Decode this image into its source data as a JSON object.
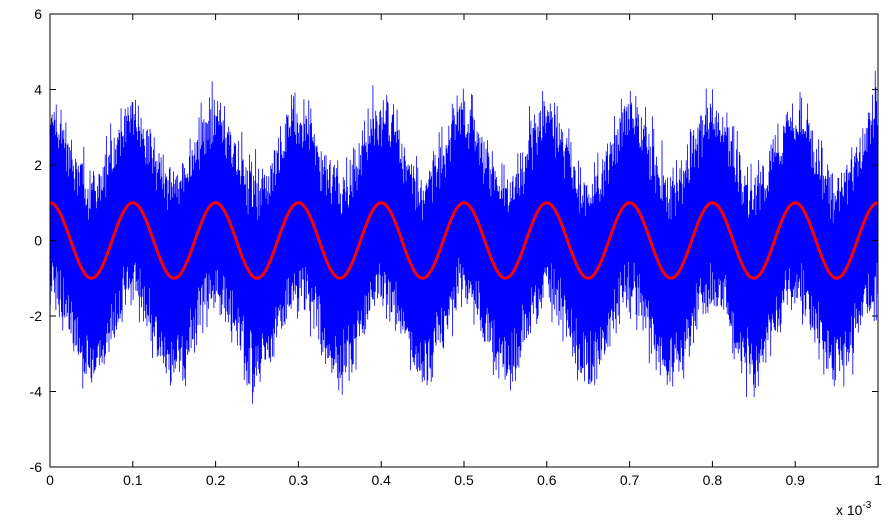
{
  "chart_data": {
    "type": "line",
    "title": "",
    "xlabel": "",
    "ylabel": "",
    "x_multiplier_label": "x 10",
    "x_multiplier_exponent": "-3",
    "xlim": [
      0,
      1
    ],
    "ylim": [
      -6,
      6
    ],
    "x_ticks": [
      "0",
      "0.1",
      "0.2",
      "0.3",
      "0.4",
      "0.5",
      "0.6",
      "0.7",
      "0.8",
      "0.9",
      "1"
    ],
    "y_ticks": [
      "-6",
      "-4",
      "-2",
      "0",
      "2",
      "4",
      "6"
    ],
    "grid": false,
    "legend": "none",
    "series": [
      {
        "color": "#0000ff",
        "description_shape": "noisy signal",
        "envelope_center_amplitude": 1,
        "envelope_period_x": 0.1,
        "noise_band_half_width": 2.5,
        "noise_peak_extent": 4.5,
        "sample_count": 2400
      },
      {
        "color": "#ff0000",
        "shape": "cosine",
        "amplitude": 1,
        "period_x": 0.1,
        "phase_at_x0": "max"
      }
    ]
  }
}
